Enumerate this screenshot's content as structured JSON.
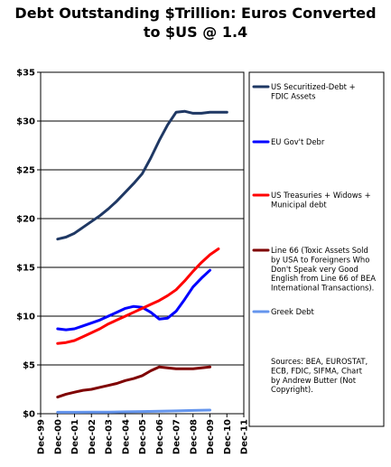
{
  "chart_data": {
    "type": "line",
    "title_lines": [
      "Debt Outstanding $Trillion: Euros Converted",
      "to $US  @ 1.4"
    ],
    "xlabel": "",
    "ylabel": "",
    "x_tick_labels": [
      "Dec-99",
      "Dec-00",
      "Dec-01",
      "Dec-02",
      "Dec-03",
      "Dec-04",
      "Dec-05",
      "Dec-06",
      "Dec-07",
      "Dec-08",
      "Dec-09",
      "Dec-10",
      "Dec-11"
    ],
    "xlim": [
      0,
      12
    ],
    "ylim": [
      0,
      35
    ],
    "y_ticks": [
      0,
      5,
      10,
      15,
      20,
      25,
      30,
      35
    ],
    "y_tick_labels": [
      "$0",
      "$5",
      "$10",
      "$15",
      "$20",
      "$25",
      "$30",
      "$35"
    ],
    "grid": "horizontal",
    "legend_position": "right",
    "series": [
      {
        "name_lines": [
          "US Securitized-Debt +",
          "FDIC Assets"
        ],
        "color": "#1f3864",
        "x": [
          1,
          1.5,
          2,
          2.5,
          3,
          3.5,
          4,
          4.5,
          5,
          5.5,
          6,
          6.5,
          7,
          7.5,
          8,
          8.5,
          9,
          9.5,
          10,
          10.5,
          11
        ],
        "values": [
          17.9,
          18.1,
          18.5,
          19.1,
          19.7,
          20.3,
          21.0,
          21.8,
          22.7,
          23.6,
          24.6,
          26.2,
          28.0,
          29.6,
          30.9,
          31.0,
          30.8,
          30.8,
          30.9,
          30.9,
          30.9
        ]
      },
      {
        "name_lines": [
          "EU Gov't Debr"
        ],
        "color": "#0000ff",
        "x": [
          1,
          1.5,
          2,
          2.5,
          3,
          3.5,
          4,
          4.5,
          5,
          5.5,
          6,
          6.5,
          7,
          7.5,
          8,
          8.5,
          9,
          9.5,
          10,
          10.5,
          11
        ],
        "values": [
          8.7,
          8.6,
          8.7,
          9.0,
          9.3,
          9.6,
          10.0,
          10.4,
          10.8,
          11.0,
          10.9,
          10.4,
          9.7,
          9.8,
          10.5,
          11.7,
          13.0,
          13.9,
          14.7,
          null,
          null
        ]
      },
      {
        "name_lines": [
          "US Treasuries + Widows +",
          "Municipal debt"
        ],
        "color": "#ff0000",
        "x": [
          1,
          1.5,
          2,
          2.5,
          3,
          3.5,
          4,
          4.5,
          5,
          5.5,
          6,
          6.5,
          7,
          7.5,
          8,
          8.5,
          9,
          9.5,
          10,
          10.5,
          11
        ],
        "values": [
          7.2,
          7.3,
          7.5,
          7.9,
          8.3,
          8.7,
          9.2,
          9.6,
          10.0,
          10.4,
          10.8,
          11.2,
          11.6,
          12.1,
          12.7,
          13.6,
          14.6,
          15.5,
          16.3,
          16.9,
          null
        ]
      },
      {
        "name_lines": [
          "Line 66 (Toxic Assets Sold",
          "by USA to Foreigners Who",
          "Don't Speak very Good",
          "English from Line 66 of BEA",
          "International Transactions)."
        ],
        "color": "#7f0000",
        "x": [
          1,
          1.5,
          2,
          2.5,
          3,
          3.5,
          4,
          4.5,
          5,
          5.5,
          6,
          6.5,
          7,
          7.5,
          8,
          8.5,
          9,
          9.5,
          10,
          10.5,
          11
        ],
        "values": [
          1.7,
          2.0,
          2.2,
          2.4,
          2.5,
          2.7,
          2.9,
          3.1,
          3.4,
          3.6,
          3.9,
          4.4,
          4.8,
          4.7,
          4.6,
          4.6,
          4.6,
          4.7,
          4.8,
          null,
          null
        ]
      },
      {
        "name_lines": [
          "Greek Debt"
        ],
        "color": "#6495ed",
        "x": [
          1,
          2,
          3,
          4,
          5,
          6,
          7,
          8,
          9,
          10,
          11
        ],
        "values": [
          0.15,
          0.15,
          0.16,
          0.17,
          0.19,
          0.22,
          0.25,
          0.29,
          0.33,
          0.37,
          null
        ]
      }
    ],
    "sources_lines": [
      "Sources: BEA, EUROSTAT,",
      "ECB, FDIC, SIFMA, Chart",
      "by Andrew Butter (Not",
      "Copyright)."
    ]
  }
}
